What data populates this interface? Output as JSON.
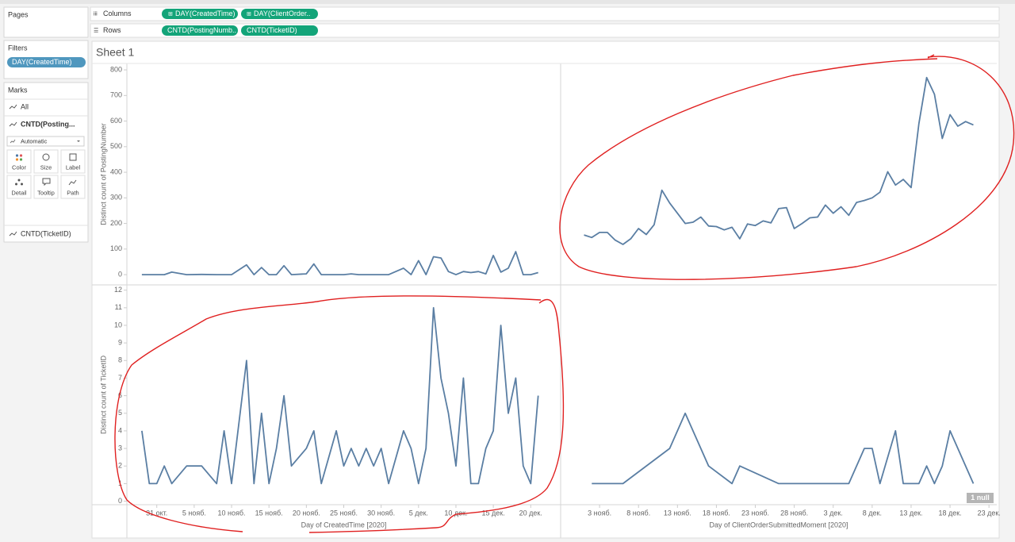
{
  "pages": {
    "title": "Pages"
  },
  "shelves": {
    "columns": {
      "label": "Columns",
      "pills": [
        "DAY(CreatedTime)",
        "DAY(ClientOrder.."
      ]
    },
    "rows": {
      "label": "Rows",
      "pills": [
        "CNTD(PostingNumb..",
        "CNTD(TicketID)"
      ]
    }
  },
  "filters": {
    "title": "Filters",
    "pills": [
      "DAY(CreatedTime)"
    ]
  },
  "marks": {
    "title": "Marks",
    "all": "All",
    "measure1": "CNTD(Posting...",
    "mark_type": "Automatic",
    "buttons": [
      "Color",
      "Size",
      "Label",
      "Detail",
      "Tooltip",
      "Path"
    ],
    "measure2": "CNTD(TicketID)"
  },
  "sheet_title": "Sheet 1",
  "chart_data": [
    {
      "type": "line",
      "color": "#5a7ea3",
      "y_label": "Distinct count of PostingNumber",
      "ylim": [
        -40,
        825
      ],
      "yticks": [
        0,
        100,
        200,
        300,
        400,
        500,
        600,
        700,
        800
      ],
      "xlim": [
        "2020-10-27",
        "2020-12-24"
      ],
      "x": [
        "2020-10-29",
        "2020-10-30",
        "2020-10-31",
        "2020-11-01",
        "2020-11-02",
        "2020-11-04",
        "2020-11-06",
        "2020-11-08",
        "2020-11-09",
        "2020-11-10",
        "2020-11-12",
        "2020-11-13",
        "2020-11-14",
        "2020-11-15",
        "2020-11-16",
        "2020-11-17",
        "2020-11-18",
        "2020-11-20",
        "2020-11-21",
        "2020-11-22",
        "2020-11-24",
        "2020-11-25",
        "2020-11-26",
        "2020-11-27",
        "2020-11-28",
        "2020-11-29",
        "2020-11-30",
        "2020-12-01",
        "2020-12-03",
        "2020-12-04",
        "2020-12-05",
        "2020-12-06",
        "2020-12-07",
        "2020-12-08",
        "2020-12-09",
        "2020-12-10",
        "2020-12-11",
        "2020-12-12",
        "2020-12-13",
        "2020-12-14",
        "2020-12-15",
        "2020-12-16",
        "2020-12-17",
        "2020-12-18",
        "2020-12-19",
        "2020-12-20",
        "2020-12-21"
      ],
      "values": [
        0,
        0,
        0,
        0,
        10,
        0,
        1,
        0,
        0,
        0,
        38,
        0,
        28,
        0,
        0,
        35,
        0,
        3,
        42,
        0,
        0,
        0,
        3,
        0,
        0,
        0,
        0,
        0,
        25,
        0,
        55,
        0,
        70,
        65,
        12,
        0,
        12,
        8,
        12,
        3,
        75,
        10,
        25,
        90,
        0,
        0,
        8
      ]
    },
    {
      "type": "line",
      "color": "#5a7ea3",
      "ylim": [
        -40,
        825
      ],
      "xlim": [
        "2020-10-29",
        "2020-12-24"
      ],
      "x": [
        "2020-11-01",
        "2020-11-02",
        "2020-11-03",
        "2020-11-04",
        "2020-11-05",
        "2020-11-06",
        "2020-11-07",
        "2020-11-08",
        "2020-11-09",
        "2020-11-10",
        "2020-11-11",
        "2020-11-12",
        "2020-11-13",
        "2020-11-14",
        "2020-11-15",
        "2020-11-16",
        "2020-11-17",
        "2020-11-18",
        "2020-11-19",
        "2020-11-20",
        "2020-11-21",
        "2020-11-22",
        "2020-11-23",
        "2020-11-24",
        "2020-11-25",
        "2020-11-26",
        "2020-11-27",
        "2020-11-28",
        "2020-11-29",
        "2020-11-30",
        "2020-12-01",
        "2020-12-02",
        "2020-12-03",
        "2020-12-04",
        "2020-12-05",
        "2020-12-06",
        "2020-12-07",
        "2020-12-08",
        "2020-12-09",
        "2020-12-10",
        "2020-12-11",
        "2020-12-12",
        "2020-12-13",
        "2020-12-14",
        "2020-12-15",
        "2020-12-16",
        "2020-12-17",
        "2020-12-18",
        "2020-12-19",
        "2020-12-20",
        "2020-12-21"
      ],
      "values": [
        155,
        145,
        165,
        165,
        135,
        118,
        140,
        180,
        157,
        195,
        330,
        280,
        240,
        200,
        205,
        225,
        190,
        188,
        175,
        185,
        140,
        198,
        192,
        210,
        202,
        258,
        262,
        180,
        200,
        222,
        225,
        272,
        240,
        265,
        232,
        282,
        290,
        300,
        322,
        402,
        350,
        372,
        340,
        590,
        770,
        705,
        532,
        625,
        580,
        598,
        585
      ]
    },
    {
      "type": "line",
      "color": "#5a7ea3",
      "y_label": "Distinct count of TicketID",
      "ylim": [
        -0.2,
        12.3
      ],
      "yticks": [
        0,
        1,
        2,
        3,
        4,
        5,
        6,
        7,
        8,
        9,
        10,
        11,
        12
      ],
      "x_label": "Day of CreatedTime [2020]",
      "xlim": [
        "2020-10-27",
        "2020-12-24"
      ],
      "xticks": [
        {
          "value": "2020-10-31",
          "label": "31 окт."
        },
        {
          "value": "2020-11-05",
          "label": "5 нояб."
        },
        {
          "value": "2020-11-10",
          "label": "10 нояб."
        },
        {
          "value": "2020-11-15",
          "label": "15 нояб."
        },
        {
          "value": "2020-11-20",
          "label": "20 нояб."
        },
        {
          "value": "2020-11-25",
          "label": "25 нояб."
        },
        {
          "value": "2020-11-30",
          "label": "30 нояб."
        },
        {
          "value": "2020-12-05",
          "label": "5 дек."
        },
        {
          "value": "2020-12-10",
          "label": "10 дек."
        },
        {
          "value": "2020-12-15",
          "label": "15 дек."
        },
        {
          "value": "2020-12-20",
          "label": "20 дек."
        }
      ],
      "x": [
        "2020-10-29",
        "2020-10-30",
        "2020-10-31",
        "2020-11-01",
        "2020-11-02",
        "2020-11-04",
        "2020-11-06",
        "2020-11-08",
        "2020-11-09",
        "2020-11-10",
        "2020-11-12",
        "2020-11-13",
        "2020-11-14",
        "2020-11-15",
        "2020-11-16",
        "2020-11-17",
        "2020-11-18",
        "2020-11-20",
        "2020-11-21",
        "2020-11-22",
        "2020-11-24",
        "2020-11-25",
        "2020-11-26",
        "2020-11-27",
        "2020-11-28",
        "2020-11-29",
        "2020-11-30",
        "2020-12-01",
        "2020-12-03",
        "2020-12-04",
        "2020-12-05",
        "2020-12-06",
        "2020-12-07",
        "2020-12-08",
        "2020-12-09",
        "2020-12-10",
        "2020-12-11",
        "2020-12-12",
        "2020-12-13",
        "2020-12-14",
        "2020-12-15",
        "2020-12-16",
        "2020-12-17",
        "2020-12-18",
        "2020-12-19",
        "2020-12-20",
        "2020-12-21"
      ],
      "values": [
        4,
        1,
        1,
        2,
        1,
        2,
        2,
        1,
        4,
        1,
        8,
        1,
        5,
        1,
        3,
        6,
        2,
        3,
        4,
        1,
        4,
        2,
        3,
        2,
        3,
        2,
        3,
        1,
        4,
        3,
        1,
        3,
        11,
        7,
        5,
        2,
        7,
        1,
        1,
        3,
        4,
        10,
        5,
        7,
        2,
        1,
        6
      ]
    },
    {
      "type": "line",
      "color": "#5a7ea3",
      "ylim": [
        -0.2,
        12.3
      ],
      "x_label": "Day of ClientOrderSubmittedMoment [2020]",
      "xlim": [
        "2020-10-29",
        "2020-12-24"
      ],
      "xticks": [
        {
          "value": "2020-11-03",
          "label": "3 нояб."
        },
        {
          "value": "2020-11-08",
          "label": "8 нояб."
        },
        {
          "value": "2020-11-13",
          "label": "13 нояб."
        },
        {
          "value": "2020-11-18",
          "label": "18 нояб."
        },
        {
          "value": "2020-11-23",
          "label": "23 нояб."
        },
        {
          "value": "2020-11-28",
          "label": "28 нояб."
        },
        {
          "value": "2020-12-03",
          "label": "3 дек."
        },
        {
          "value": "2020-12-08",
          "label": "8 дек."
        },
        {
          "value": "2020-12-13",
          "label": "13 дек."
        },
        {
          "value": "2020-12-18",
          "label": "18 дек."
        },
        {
          "value": "2020-12-23",
          "label": "23 дек."
        }
      ],
      "x": [
        "2020-11-02",
        "2020-11-06",
        "2020-11-12",
        "2020-11-14",
        "2020-11-17",
        "2020-11-20",
        "2020-11-21",
        "2020-11-26",
        "2020-12-05",
        "2020-12-07",
        "2020-12-08",
        "2020-12-09",
        "2020-12-11",
        "2020-12-12",
        "2020-12-14",
        "2020-12-15",
        "2020-12-16",
        "2020-12-17",
        "2020-12-18",
        "2020-12-21"
      ],
      "values": [
        1,
        1,
        3,
        5,
        2,
        1,
        2,
        1,
        1,
        3,
        3,
        1,
        4,
        1,
        1,
        2,
        1,
        2,
        4,
        1
      ],
      "null_label": "1 null"
    }
  ]
}
